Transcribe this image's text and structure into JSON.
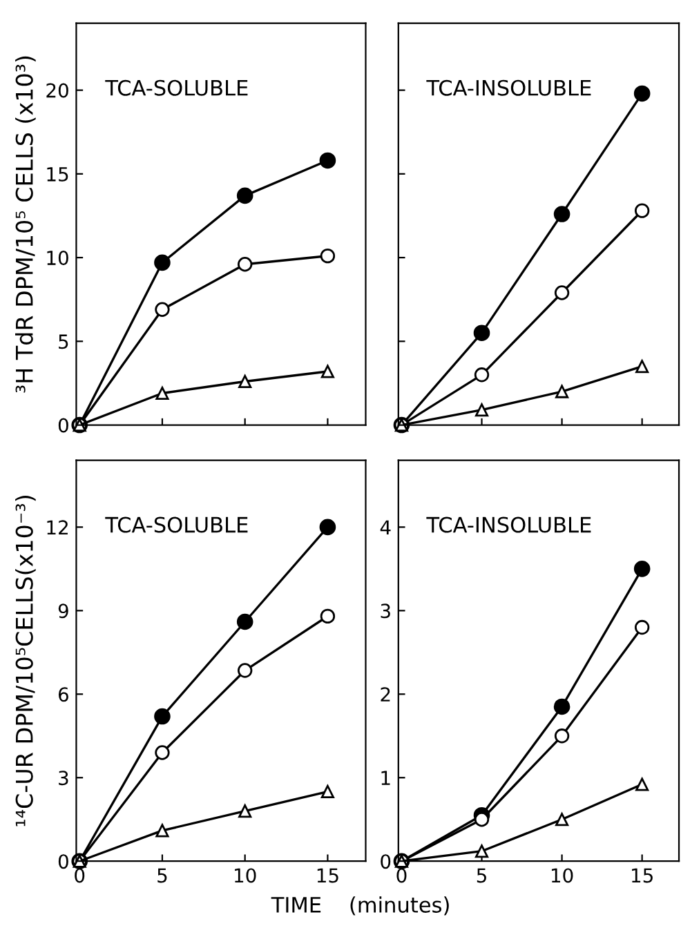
{
  "chart_data": [
    {
      "type": "line",
      "ylabel": "³H TdR DPM/10⁵ CELLS (x10³)",
      "annotations": [
        "TCA-SOLUBLE"
      ],
      "xlim": [
        -0.2,
        17.3
      ],
      "ylim": [
        0,
        24
      ],
      "xticks": [
        {
          "value": 0,
          "label": null
        },
        {
          "value": 5,
          "label": null
        },
        {
          "value": 10,
          "label": null
        },
        {
          "value": 15,
          "label": null
        }
      ],
      "yticks": [
        0,
        5,
        10,
        15,
        20
      ],
      "tick_labels": "y",
      "line_style": "solid",
      "grid": false,
      "legend": false,
      "series": [
        {
          "x": [
            0,
            5,
            10,
            15
          ],
          "values": [
            0,
            9.7,
            13.7,
            15.8
          ],
          "color": "#000000",
          "marker": "circle"
        },
        {
          "x": [
            0,
            5,
            10,
            15
          ],
          "values": [
            0,
            6.9,
            9.6,
            10.1
          ],
          "color": "#ffffff",
          "marker": "circle"
        },
        {
          "x": [
            0,
            5,
            10,
            15
          ],
          "values": [
            0,
            1.9,
            2.6,
            3.2
          ],
          "color": "#ffffff",
          "marker": "triangle"
        }
      ]
    },
    {
      "type": "line",
      "annotations": [
        "TCA-INSOLUBLE"
      ],
      "xlim": [
        -0.2,
        17.3
      ],
      "ylim": [
        0,
        24
      ],
      "xticks": [
        {
          "value": 0,
          "label": null
        },
        {
          "value": 5,
          "label": null
        },
        {
          "value": 10,
          "label": null
        },
        {
          "value": 15,
          "label": null
        }
      ],
      "yticks": [
        {
          "value": 0,
          "label": null
        },
        {
          "value": 5,
          "label": null
        },
        {
          "value": 10,
          "label": null
        },
        {
          "value": 15,
          "label": null
        },
        {
          "value": 20,
          "label": null
        }
      ],
      "tick_labels": false,
      "line_style": "solid",
      "grid": false,
      "legend": false,
      "series": [
        {
          "x": [
            0,
            5,
            10,
            15
          ],
          "values": [
            0,
            5.5,
            12.6,
            19.8
          ],
          "color": "#000000",
          "marker": "circle"
        },
        {
          "x": [
            0,
            5,
            10,
            15
          ],
          "values": [
            0,
            3.0,
            7.9,
            12.8
          ],
          "color": "#ffffff",
          "marker": "circle"
        },
        {
          "x": [
            0,
            5,
            10,
            15
          ],
          "values": [
            0,
            0.9,
            2.0,
            3.5
          ],
          "color": "#ffffff",
          "marker": "triangle"
        }
      ]
    },
    {
      "type": "line",
      "ylabel": "¹⁴C-UR DPM/10⁵CELLS(x10⁻³)",
      "xlabel": "TIME    (minutes)",
      "annotations": [
        "TCA-SOLUBLE"
      ],
      "xlim": [
        -0.2,
        17.3
      ],
      "ylim": [
        0,
        14.4
      ],
      "xticks": [
        0,
        5,
        10,
        15
      ],
      "yticks": [
        0,
        3,
        6,
        9,
        12
      ],
      "line_style": "solid",
      "grid": false,
      "legend": false,
      "series": [
        {
          "x": [
            0,
            5,
            10,
            15
          ],
          "values": [
            0,
            5.2,
            8.6,
            12.0
          ],
          "color": "#000000",
          "marker": "circle"
        },
        {
          "x": [
            0,
            5,
            10,
            15
          ],
          "values": [
            0,
            3.9,
            6.85,
            8.8
          ],
          "color": "#ffffff",
          "marker": "circle"
        },
        {
          "x": [
            0,
            5,
            10,
            15
          ],
          "values": [
            0,
            1.1,
            1.8,
            2.5
          ],
          "color": "#ffffff",
          "marker": "triangle"
        }
      ]
    },
    {
      "type": "line",
      "annotations": [
        "TCA-INSOLUBLE"
      ],
      "xlim": [
        -0.2,
        17.3
      ],
      "ylim": [
        0,
        4.8
      ],
      "xticks": [
        0,
        5,
        10,
        15
      ],
      "yticks": [
        0,
        1,
        2,
        3,
        4
      ],
      "line_style": "solid",
      "grid": false,
      "legend": false,
      "series": [
        {
          "x": [
            0,
            5,
            10,
            15
          ],
          "values": [
            0,
            0.55,
            1.85,
            3.5
          ],
          "color": "#000000",
          "marker": "circle"
        },
        {
          "x": [
            0,
            5,
            10,
            15
          ],
          "values": [
            0,
            0.5,
            1.5,
            2.8
          ],
          "color": "#ffffff",
          "marker": "circle"
        },
        {
          "x": [
            0,
            5,
            10,
            15
          ],
          "values": [
            0,
            0.12,
            0.5,
            0.92
          ],
          "color": "#ffffff",
          "marker": "triangle"
        }
      ]
    }
  ]
}
